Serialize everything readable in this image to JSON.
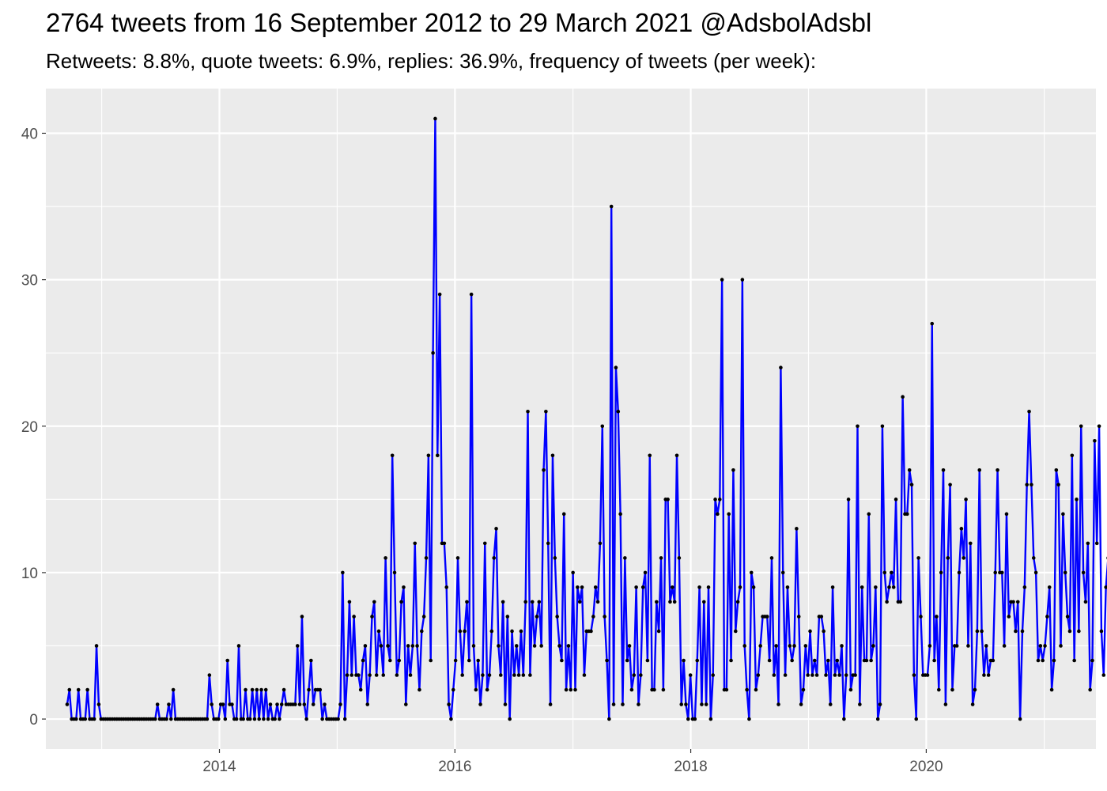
{
  "chart_data": {
    "type": "line",
    "title": "2764 tweets from 16 September 2012 to 29 March 2021 @AdsbolAdsbl",
    "subtitle": "Retweets: 8.8%, quote tweets: 6.9%, replies: 36.9%, frequency of tweets (per week):",
    "xlabel": "",
    "ylabel": "",
    "x_start": "2012-09-16",
    "x_step_days": 7,
    "xlim": [
      "2012-07-12",
      "2021-06-10"
    ],
    "ylim": [
      -2.05,
      43.05
    ],
    "x_ticks": [
      "2014",
      "2016",
      "2018",
      "2020"
    ],
    "x_tick_dates": [
      "2014-01-01",
      "2016-01-01",
      "2018-01-01",
      "2020-01-01"
    ],
    "y_ticks": [
      0,
      10,
      20,
      30,
      40
    ],
    "grid": true,
    "legend": "none",
    "line_color": "#0000ff",
    "point_color": "#000000",
    "panel_color": "#ebebeb",
    "values": [
      1,
      2,
      0,
      0,
      0,
      2,
      0,
      0,
      0,
      2,
      0,
      0,
      0,
      5,
      1,
      0,
      0,
      0,
      0,
      0,
      0,
      0,
      0,
      0,
      0,
      0,
      0,
      0,
      0,
      0,
      0,
      0,
      0,
      0,
      0,
      0,
      0,
      0,
      0,
      0,
      1,
      0,
      0,
      0,
      0,
      1,
      0,
      2,
      0,
      0,
      0,
      0,
      0,
      0,
      0,
      0,
      0,
      0,
      0,
      0,
      0,
      0,
      0,
      3,
      1,
      0,
      0,
      0,
      1,
      1,
      0,
      4,
      1,
      1,
      0,
      0,
      5,
      0,
      0,
      2,
      0,
      0,
      2,
      0,
      2,
      0,
      2,
      0,
      2,
      0,
      1,
      0,
      0,
      1,
      0,
      1,
      2,
      1,
      1,
      1,
      1,
      1,
      5,
      1,
      7,
      1,
      0,
      2,
      4,
      1,
      2,
      2,
      2,
      0,
      1,
      0,
      0,
      0,
      0,
      0,
      0,
      1,
      10,
      0,
      3,
      8,
      3,
      7,
      3,
      3,
      2,
      4,
      5,
      1,
      3,
      7,
      8,
      3,
      6,
      5,
      3,
      11,
      5,
      4,
      18,
      10,
      3,
      4,
      8,
      9,
      1,
      5,
      3,
      5,
      12,
      5,
      2,
      6,
      7,
      11,
      18,
      4,
      25,
      41,
      18,
      29,
      12,
      12,
      9,
      1,
      0,
      2,
      4,
      11,
      6,
      3,
      6,
      8,
      4,
      29,
      5,
      2,
      4,
      1,
      3,
      12,
      2,
      3,
      6,
      11,
      13,
      5,
      3,
      8,
      1,
      7,
      0,
      6,
      3,
      5,
      3,
      6,
      3,
      8,
      21,
      3,
      8,
      5,
      7,
      8,
      5,
      17,
      21,
      12,
      1,
      18,
      11,
      7,
      5,
      4,
      14,
      2,
      5,
      2,
      10,
      2,
      9,
      8,
      9,
      3,
      6,
      6,
      6,
      7,
      9,
      8,
      12,
      20,
      7,
      4,
      0,
      35,
      1,
      24,
      21,
      14,
      1,
      11,
      4,
      5,
      2,
      3,
      9,
      1,
      3,
      9,
      10,
      4,
      18,
      2,
      2,
      8,
      6,
      11,
      2,
      15,
      15,
      8,
      9,
      8,
      18,
      11,
      1,
      4,
      1,
      0,
      3,
      0,
      0,
      4,
      9,
      1,
      8,
      1,
      9,
      0,
      3,
      15,
      14,
      15,
      30,
      2,
      2,
      14,
      4,
      17,
      6,
      8,
      9,
      30,
      5,
      2,
      0,
      10,
      9,
      2,
      3,
      5,
      7,
      7,
      7,
      4,
      11,
      3,
      5,
      1,
      24,
      10,
      3,
      9,
      5,
      4,
      5,
      13,
      7,
      1,
      2,
      5,
      3,
      6,
      3,
      4,
      3,
      7,
      7,
      6,
      3,
      4,
      1,
      9,
      3,
      4,
      3,
      5,
      0,
      3,
      15,
      2,
      3,
      3,
      20,
      1,
      9,
      4,
      4,
      14,
      4,
      5,
      9,
      0,
      1,
      20,
      10,
      8,
      9,
      10,
      9,
      15,
      8,
      8,
      22,
      14,
      14,
      17,
      16,
      3,
      0,
      11,
      7,
      3,
      3,
      3,
      5,
      27,
      4,
      7,
      2,
      10,
      17,
      1,
      11,
      16,
      2,
      5,
      5,
      10,
      13,
      11,
      15,
      5,
      12,
      1,
      2,
      6,
      17,
      6,
      3,
      5,
      3,
      4,
      4,
      10,
      17,
      10,
      10,
      5,
      14,
      7,
      8,
      8,
      6,
      8,
      0,
      6,
      9,
      16,
      21,
      16,
      11,
      10,
      4,
      5,
      4,
      5,
      7,
      9,
      2,
      4,
      17,
      16,
      5,
      14,
      10,
      7,
      6,
      18,
      4,
      15,
      6,
      20,
      10,
      8,
      12,
      2,
      4,
      19,
      12,
      20,
      6,
      3,
      9,
      11,
      17,
      6,
      5,
      2,
      1
    ]
  }
}
